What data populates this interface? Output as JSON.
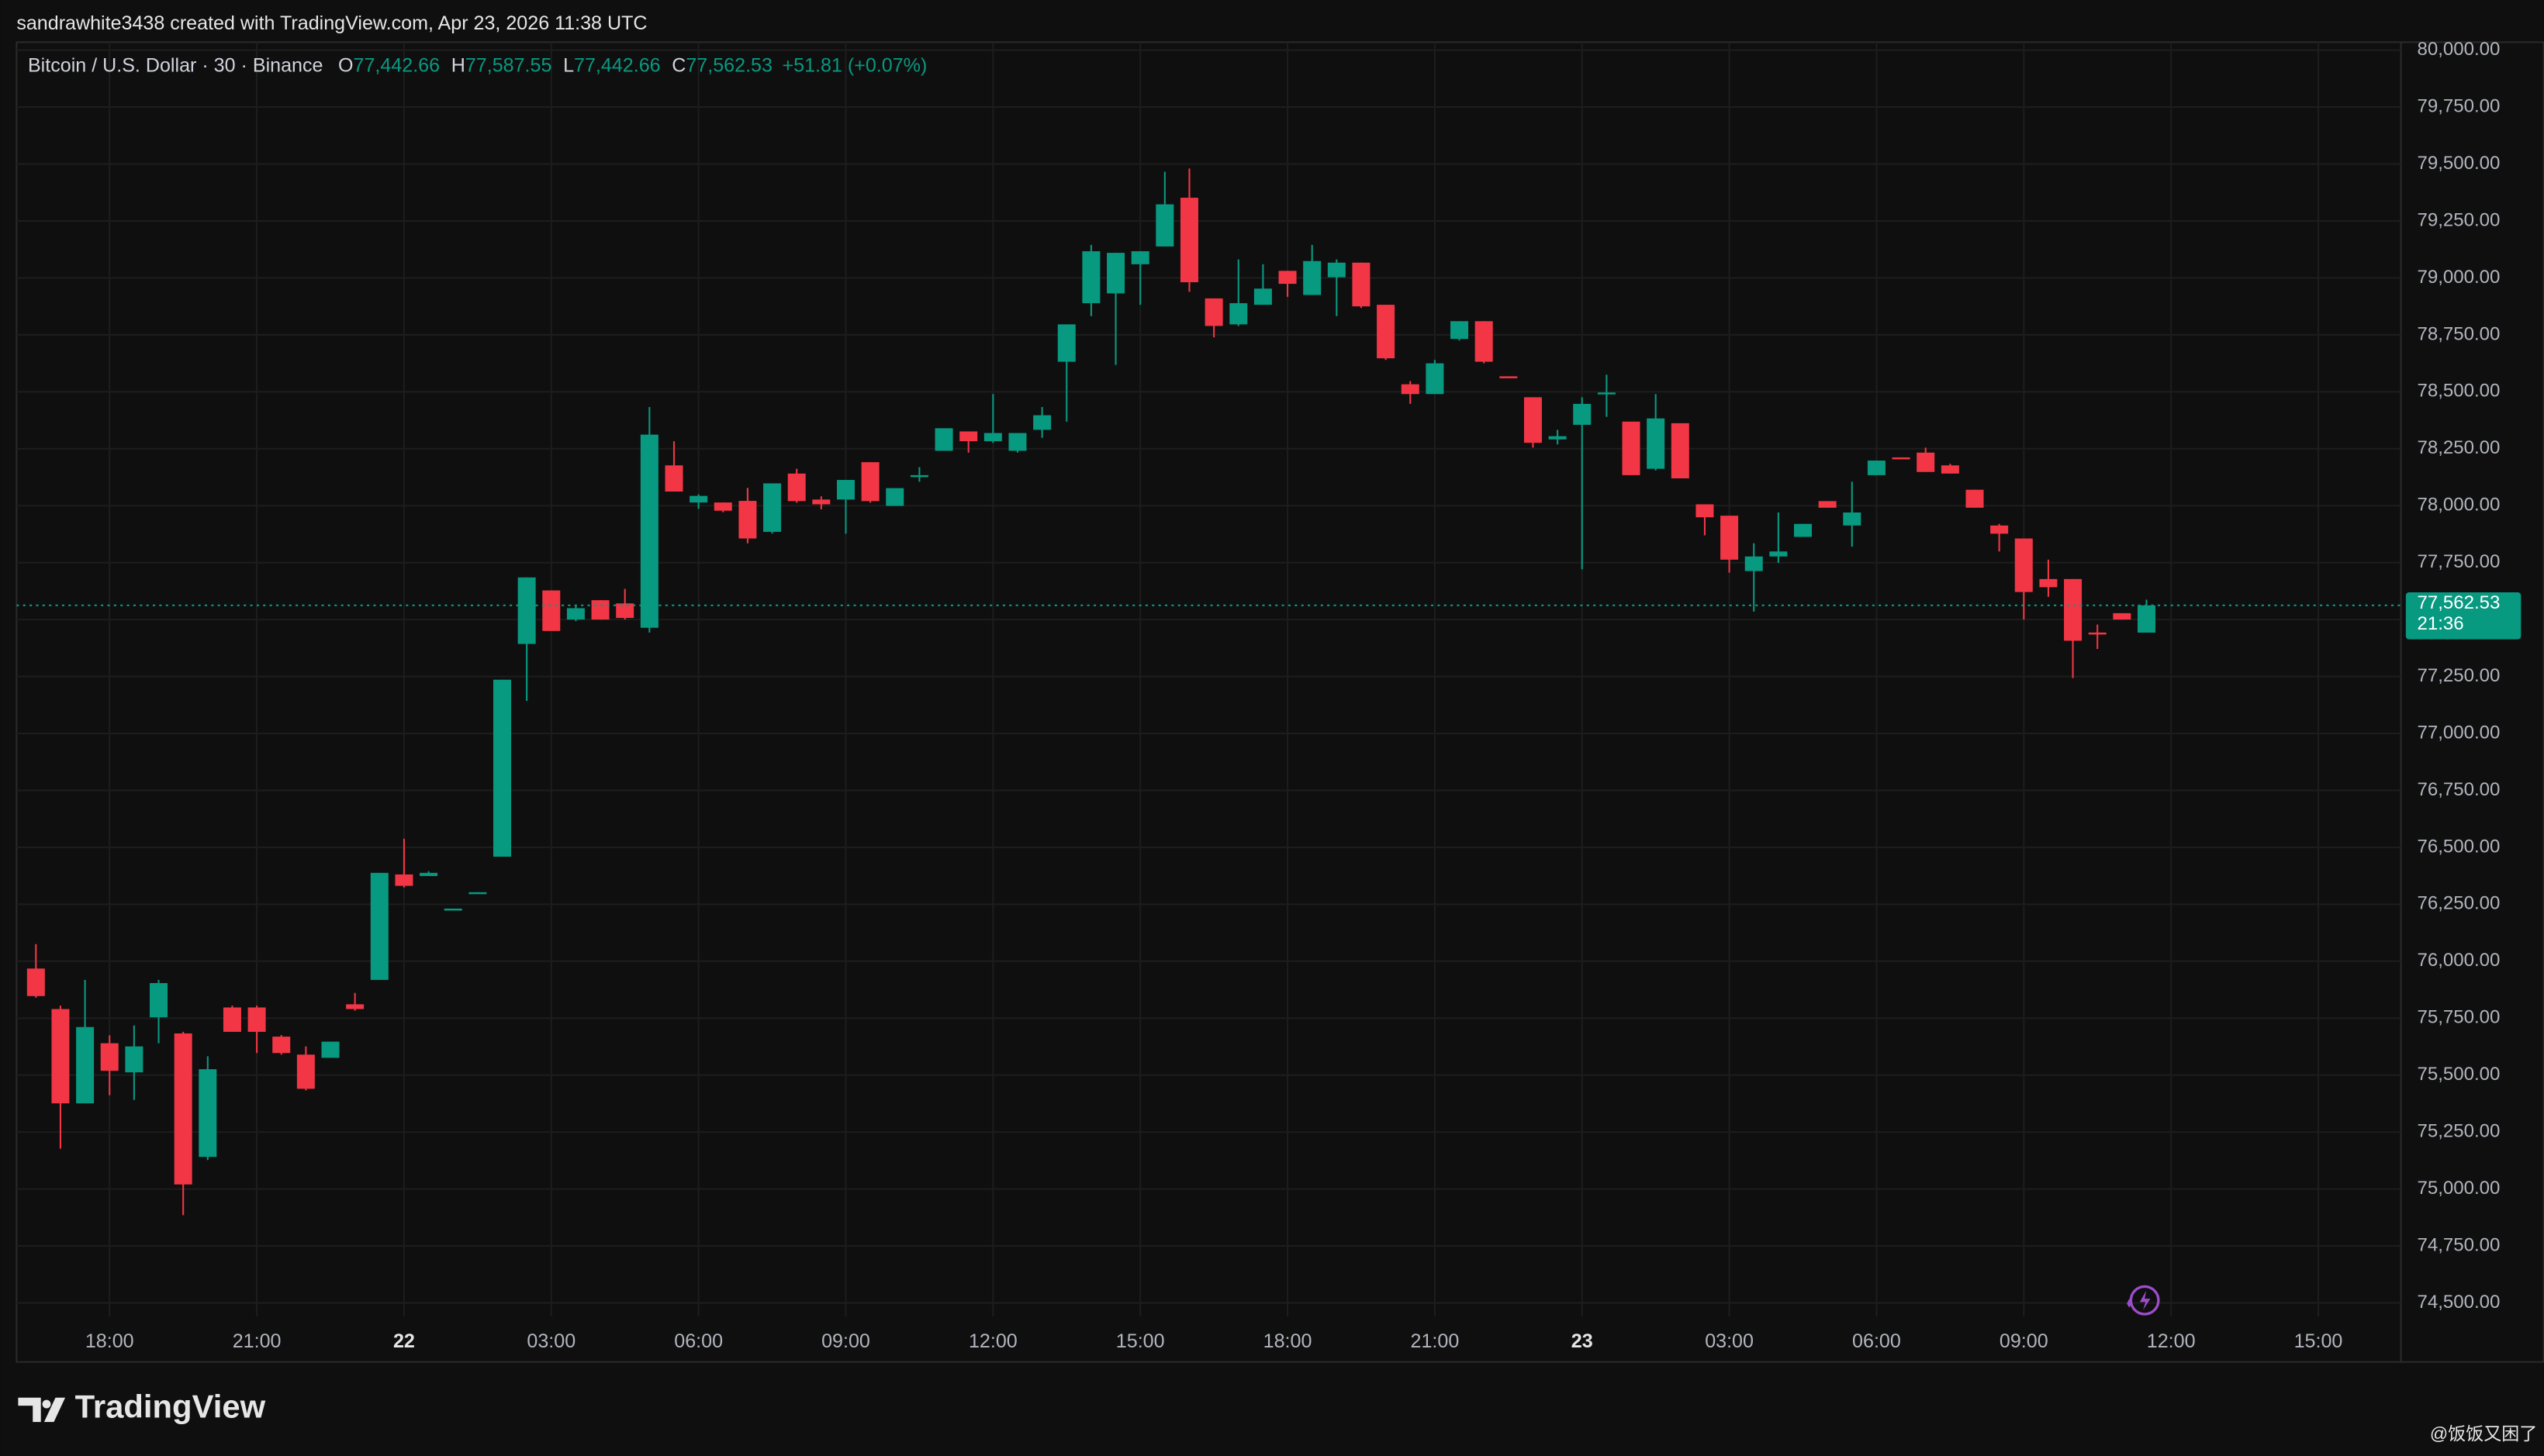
{
  "header": {
    "attribution": "sandrawhite3438 created with TradingView.com, Apr 23, 2026 11:38 UTC"
  },
  "chart_data": {
    "type": "candlestick",
    "title": "Bitcoin / U.S. Dollar · 30 · Binance",
    "ohlc_legend": [
      {
        "label": "O",
        "value": "77,442.66"
      },
      {
        "label": "H",
        "value": "77,587.55"
      },
      {
        "label": "L",
        "value": "77,442.66"
      },
      {
        "label": "C",
        "value": "77,562.53"
      }
    ],
    "change": "+51.81 (+0.07%)",
    "up_color": "#089981",
    "down_color": "#f23645",
    "categories": [
      null,
      null,
      null,
      "18:00",
      null,
      null,
      null,
      null,
      null,
      "21:00",
      null,
      null,
      null,
      null,
      null,
      "22",
      null,
      null,
      null,
      null,
      null,
      "03:00",
      null,
      null,
      null,
      null,
      null,
      "06:00",
      null,
      null,
      null,
      null,
      null,
      "09:00",
      null,
      null,
      null,
      null,
      null,
      "12:00",
      null,
      null,
      null,
      null,
      null,
      "15:00",
      null,
      null,
      null,
      null,
      null,
      "18:00",
      null,
      null,
      null,
      null,
      null,
      "21:00",
      null,
      null,
      null,
      null,
      null,
      "23",
      null,
      null,
      null,
      null,
      null,
      "03:00",
      null,
      null,
      null,
      null,
      null,
      "06:00",
      null,
      null,
      null,
      null,
      null,
      "09:00",
      null,
      null,
      null,
      null,
      null,
      "12:00",
      null,
      null,
      null,
      null,
      null,
      "15:00",
      null,
      null
    ],
    "open": [
      75968,
      75790,
      75376,
      75640,
      75512,
      75754,
      75683,
      75141,
      75797,
      75797,
      75669,
      75590,
      75576,
      75811,
      75918,
      76381,
      76374,
      76224,
      76296,
      76459,
      77393,
      77628,
      77500,
      77585,
      77571,
      77464,
      78177,
      78014,
      78014,
      78021,
      77885,
      78141,
      78027,
      78027,
      78191,
      77999,
      78127,
      78241,
      78326,
      78283,
      78241,
      78333,
      78632,
      78889,
      78932,
      79060,
      79138,
      79352,
      78910,
      78796,
      78882,
      79031,
      78925,
      79003,
      79067,
      78882,
      78533,
      78490,
      78732,
      78810,
      78568,
      78476,
      78291,
      78355,
      78490,
      78369,
      78162,
      78362,
      78006,
      77956,
      77713,
      77777,
      77863,
      78020,
      77913,
      78134,
      78212,
      78233,
      78177,
      78070,
      77913,
      77856,
      77678,
      77678,
      77443,
      77528,
      77442.66,
      null,
      null,
      null,
      null,
      null,
      null,
      null,
      null,
      null
    ],
    "high": [
      76075,
      75805,
      75918,
      75675,
      75718,
      75918,
      75690,
      75583,
      75805,
      75805,
      75676,
      75626,
      75647,
      75861,
      76388,
      76538,
      76395,
      76231,
      76303,
      77236,
      77685,
      77628,
      77564,
      77585,
      77635,
      78433,
      78283,
      78050,
      78014,
      78078,
      78098,
      78162,
      78041,
      78113,
      78191,
      78077,
      78169,
      78340,
      78326,
      78490,
      78319,
      78433,
      78796,
      79145,
      79110,
      79117,
      79466,
      79480,
      78910,
      79081,
      79060,
      79031,
      79145,
      79081,
      79067,
      78882,
      78547,
      78640,
      78810,
      78810,
      78568,
      78476,
      78333,
      78476,
      78575,
      78369,
      78490,
      78362,
      78006,
      77956,
      77835,
      77970,
      77920,
      78020,
      78105,
      78198,
      78212,
      78255,
      78184,
      78070,
      77920,
      77856,
      77763,
      77678,
      77478,
      77528,
      77587.55,
      null,
      null,
      null,
      null,
      null,
      null,
      null,
      null,
      null
    ],
    "low": [
      75840,
      75177,
      75376,
      75412,
      75391,
      75640,
      74885,
      75127,
      75690,
      75597,
      75590,
      75433,
      75576,
      75783,
      75918,
      76324,
      76374,
      76224,
      76296,
      76459,
      77143,
      77450,
      77493,
      77500,
      77500,
      77443,
      78062,
      77986,
      77971,
      77835,
      77878,
      78013,
      77984,
      77877,
      78013,
      77999,
      78105,
      78241,
      78233,
      78276,
      78233,
      78298,
      78369,
      78832,
      78618,
      78882,
      79138,
      78939,
      78739,
      78789,
      78882,
      78917,
      78925,
      78832,
      78868,
      78640,
      78447,
      78490,
      78725,
      78625,
      78561,
      78255,
      78269,
      77721,
      78390,
      78134,
      78155,
      78120,
      77870,
      77706,
      77535,
      77749,
      77863,
      77991,
      77820,
      78134,
      78205,
      78148,
      78141,
      77991,
      77799,
      77500,
      77600,
      77243,
      77371,
      77500,
      77442.66,
      null,
      null,
      null,
      null,
      null,
      null,
      null,
      null,
      null
    ],
    "close": [
      75847,
      75376,
      75711,
      75519,
      75626,
      75904,
      75020,
      75526,
      75690,
      75690,
      75597,
      75440,
      75647,
      75790,
      76388,
      76331,
      76388,
      76231,
      76303,
      77236,
      77685,
      77450,
      77550,
      77500,
      77507,
      78312,
      78062,
      78043,
      77978,
      77856,
      78098,
      78020,
      78006,
      78113,
      78020,
      78077,
      78134,
      78340,
      78283,
      78319,
      78319,
      78397,
      78796,
      79117,
      79110,
      79117,
      79323,
      78981,
      78789,
      78889,
      78953,
      78974,
      79074,
      79067,
      78875,
      78647,
      78490,
      78625,
      78810,
      78632,
      78561,
      78276,
      78305,
      78447,
      78497,
      78134,
      78383,
      78120,
      77949,
      77763,
      77777,
      77799,
      77920,
      77991,
      77970,
      78198,
      78205,
      78148,
      78141,
      77991,
      77877,
      77621,
      77642,
      77407,
      77436,
      77500,
      77562.53,
      null,
      null,
      null,
      null,
      null,
      null,
      null,
      null,
      null
    ],
    "price_tag": {
      "price": "77,562.53",
      "countdown": "21:36"
    },
    "ylim": [
      74440,
      80035
    ],
    "yticks": [
      {
        "value": 74500,
        "label": "74,500.00"
      },
      {
        "value": 74750,
        "label": "74,750.00"
      },
      {
        "value": 75000,
        "label": "75,000.00"
      },
      {
        "value": 75250,
        "label": "75,250.00"
      },
      {
        "value": 75500,
        "label": "75,500.00"
      },
      {
        "value": 75750,
        "label": "75,750.00"
      },
      {
        "value": 76000,
        "label": "76,000.00"
      },
      {
        "value": 76250,
        "label": "76,250.00"
      },
      {
        "value": 76500,
        "label": "76,500.00"
      },
      {
        "value": 76750,
        "label": "76,750.00"
      },
      {
        "value": 77000,
        "label": "77,000.00"
      },
      {
        "value": 77250,
        "label": "77,250.00"
      },
      {
        "value": 77500,
        "label": "77,500.00"
      },
      {
        "value": 77750,
        "label": "77,750.00"
      },
      {
        "value": 78000,
        "label": "78,000.00"
      },
      {
        "value": 78250,
        "label": "78,250.00"
      },
      {
        "value": 78500,
        "label": "78,500.00"
      },
      {
        "value": 78750,
        "label": "78,750.00"
      },
      {
        "value": 79000,
        "label": "79,000.00"
      },
      {
        "value": 79250,
        "label": "79,250.00"
      },
      {
        "value": 79500,
        "label": "79,500.00"
      },
      {
        "value": 79750,
        "label": "79,750.00"
      },
      {
        "value": 80000,
        "label": "80,000.00"
      }
    ],
    "grid": true
  },
  "footer": {
    "logo": "TradingView",
    "watermark": "@饭饭又困了"
  }
}
